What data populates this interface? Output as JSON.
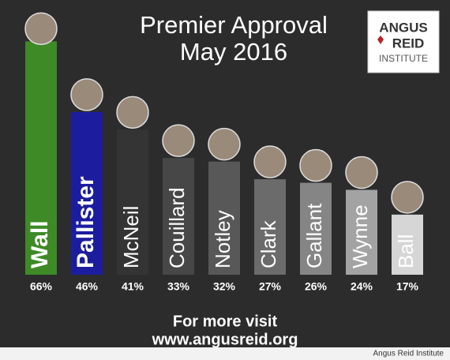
{
  "chart_data": {
    "type": "bar",
    "title": "Premier Approval",
    "subtitle": "May 2016",
    "categories": [
      "Wall",
      "Pallister",
      "McNeil",
      "Couillard",
      "Notley",
      "Clark",
      "Gallant",
      "Wynne",
      "Ball"
    ],
    "values": [
      66,
      46,
      41,
      33,
      32,
      27,
      26,
      24,
      17
    ],
    "value_labels": [
      "66%",
      "46%",
      "41%",
      "33%",
      "32%",
      "27%",
      "26%",
      "24%",
      "17%"
    ],
    "colors": [
      "#3d8a26",
      "#1c1d9e",
      "#343434",
      "#474747",
      "#585858",
      "#6b6b6b",
      "#858585",
      "#a3a3a3",
      "#d6d6d6"
    ]
  },
  "logo": {
    "line1": "ANGUS",
    "line2": "REID",
    "line3": "INSTITUTE"
  },
  "footer": {
    "line1": "For more visit",
    "line2": "www.angusreid.org"
  },
  "credit": "Angus Reid Institute"
}
